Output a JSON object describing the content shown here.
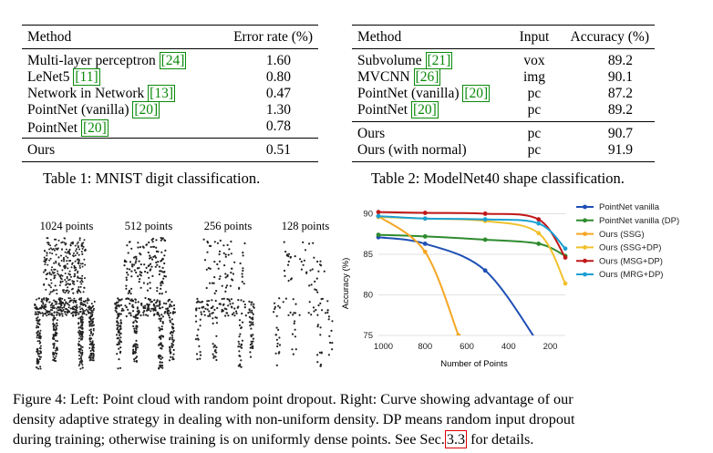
{
  "table1": {
    "headers": [
      "Method",
      "Error rate (%)"
    ],
    "rows": [
      {
        "method": "Multi-layer perceptron",
        "cite": "[24]",
        "value": "1.60"
      },
      {
        "method": "LeNet5",
        "cite": "[11]",
        "value": "0.80"
      },
      {
        "method": "Network in Network",
        "cite": "[13]",
        "value": "0.47"
      },
      {
        "method": "PointNet (vanilla)",
        "cite": "[20]",
        "value": "1.30"
      },
      {
        "method": "PointNet",
        "cite": "[20]",
        "value": "0.78"
      }
    ],
    "ours": {
      "method": "Ours",
      "value": "0.51"
    },
    "caption": "Table 1: MNIST digit classification."
  },
  "table2": {
    "headers": [
      "Method",
      "Input",
      "Accuracy (%)"
    ],
    "rows": [
      {
        "method": "Subvolume",
        "cite": "[21]",
        "input": "vox",
        "value": "89.2"
      },
      {
        "method": "MVCNN",
        "cite": "[26]",
        "input": "img",
        "value": "90.1"
      },
      {
        "method": "PointNet (vanilla)",
        "cite": "[20]",
        "input": "pc",
        "value": "87.2"
      },
      {
        "method": "PointNet",
        "cite": "[20]",
        "input": "pc",
        "value": "89.2"
      }
    ],
    "ours": [
      {
        "method": "Ours",
        "input": "pc",
        "value": "90.7"
      },
      {
        "method": "Ours (with normal)",
        "input": "pc",
        "value": "91.9"
      }
    ],
    "caption": "Table 2: ModelNet40 shape classification."
  },
  "point_clouds": {
    "labels": [
      "1024 points",
      "512 points",
      "256 points",
      "128 points"
    ]
  },
  "chart_data": {
    "type": "line",
    "xlabel": "Number of Points",
    "ylabel": "Accuracy (%)",
    "xlim": [
      1024,
      128
    ],
    "ylim": [
      75,
      90.5
    ],
    "xticks": [
      1000,
      800,
      600,
      400,
      200
    ],
    "yticks": [
      75,
      80,
      85,
      90
    ],
    "grid": true,
    "legend_position": "right",
    "series": [
      {
        "name": "PointNet vanilla",
        "color": "#1f4fb4",
        "points": [
          [
            1024,
            87.1
          ],
          [
            800,
            86.3
          ],
          [
            512,
            83.0
          ],
          [
            256,
            74.0
          ]
        ]
      },
      {
        "name": "PointNet vanilla (DP)",
        "color": "#2e8b2e",
        "points": [
          [
            1024,
            87.4
          ],
          [
            800,
            87.2
          ],
          [
            512,
            86.8
          ],
          [
            256,
            86.3
          ],
          [
            128,
            84.8
          ]
        ]
      },
      {
        "name": "Ours (SSG)",
        "color": "#f5a623",
        "points": [
          [
            1024,
            89.7
          ],
          [
            800,
            85.3
          ],
          [
            640,
            75.0
          ]
        ]
      },
      {
        "name": "Ours (SSG+DP)",
        "color": "#f2c12e",
        "points": [
          [
            1024,
            89.6
          ],
          [
            800,
            89.4
          ],
          [
            512,
            89.1
          ],
          [
            256,
            87.6
          ],
          [
            128,
            81.4
          ]
        ]
      },
      {
        "name": "Ours (MSG+DP)",
        "color": "#c01818",
        "points": [
          [
            1024,
            90.2
          ],
          [
            800,
            90.1
          ],
          [
            512,
            90.0
          ],
          [
            256,
            89.3
          ],
          [
            128,
            84.6
          ]
        ]
      },
      {
        "name": "Ours (MRG+DP)",
        "color": "#1aa0d4",
        "points": [
          [
            1024,
            89.7
          ],
          [
            800,
            89.4
          ],
          [
            512,
            89.3
          ],
          [
            256,
            88.8
          ],
          [
            128,
            85.7
          ]
        ]
      }
    ]
  },
  "figure_caption": {
    "line1": "Figure 4: Left: Point cloud with random point dropout. Right: Curve showing advantage of our",
    "line2": "density adaptive strategy in dealing with non-uniform density. DP means random input dropout",
    "line3_pre": "during training; otherwise training is on uniformly dense points. See Sec.",
    "line3_ref": "3.3",
    "line3_post": " for details."
  }
}
